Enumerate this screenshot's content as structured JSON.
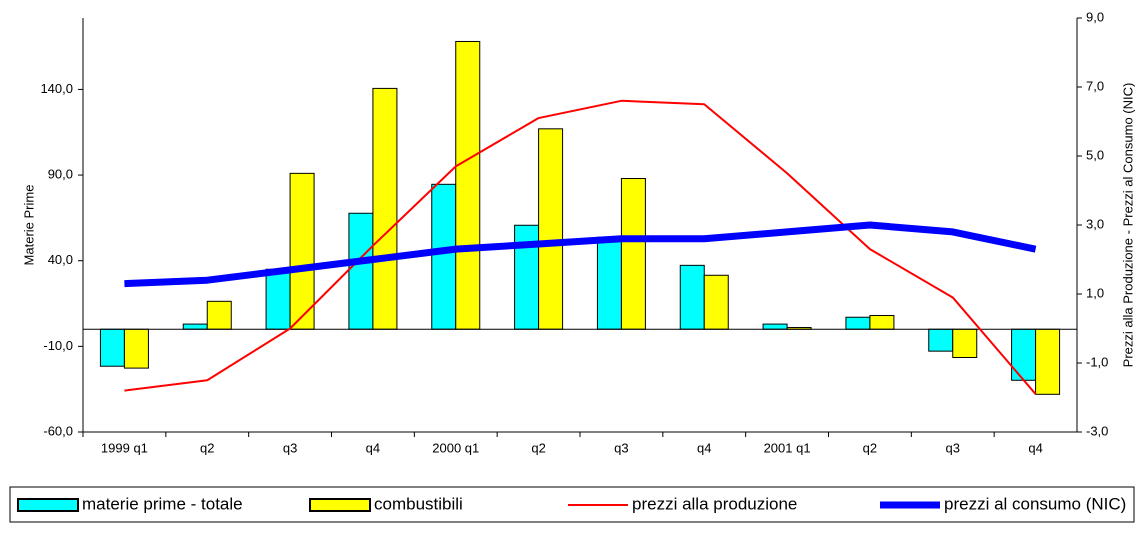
{
  "chart_data": {
    "type": "bar-line",
    "ylabel": "Materie Prime",
    "y2label": "Prezzi alla Produzione - Prezzi al Consumo (NIC)",
    "categories": [
      "1999 q1",
      "q2",
      "q3",
      "q4",
      "2000 q1",
      "q2",
      "q3",
      "q4",
      "2001 q1",
      "q2",
      "q3",
      "q4"
    ],
    "series": [
      {
        "name": "materie prime - totale",
        "type": "bar",
        "color": "#00ffff",
        "values": [
          -21.6,
          3,
          35,
          67.7,
          84.6,
          60.7,
          53.7,
          37.3,
          3,
          7,
          -12.8,
          -29.8
        ]
      },
      {
        "name": "combustibili",
        "type": "bar",
        "color": "#ffff00",
        "values": [
          -22.7,
          16.3,
          91,
          140.6,
          168,
          117,
          88,
          31.5,
          1,
          8,
          -16.5,
          -38
        ]
      },
      {
        "name": "prezzi alla produzione",
        "type": "line",
        "axis": "y2",
        "color": "#ff0000",
        "width": 2,
        "values": [
          -1.8,
          -1.5,
          0.0,
          2.4,
          4.7,
          6.1,
          6.6,
          6.5,
          4.5,
          2.3,
          0.9,
          -1.9
        ]
      },
      {
        "name": "prezzi al consumo (NIC)",
        "type": "line",
        "axis": "y2",
        "color": "#0000ff",
        "width": 7,
        "values": [
          1.3,
          1.4,
          1.7,
          2.0,
          2.3,
          2.45,
          2.6,
          2.6,
          2.8,
          3.0,
          2.8,
          2.3
        ]
      }
    ],
    "ylim": [
      -60,
      181.7
    ],
    "yticks": [
      {
        "value": -60,
        "label": "-60,0"
      },
      {
        "value": -10,
        "label": "-10,0"
      },
      {
        "value": 40,
        "label": "40,0"
      },
      {
        "value": 90,
        "label": "90,0"
      },
      {
        "value": 140,
        "label": "140,0"
      }
    ],
    "y2lim": [
      -3,
      9
    ],
    "y2ticks": [
      {
        "value": -3,
        "label": "-3,0"
      },
      {
        "value": -1,
        "label": "-1,0"
      },
      {
        "value": 1,
        "label": "1,0"
      },
      {
        "value": 3,
        "label": "3,0"
      },
      {
        "value": 5,
        "label": "5,0"
      },
      {
        "value": 7,
        "label": "7,0"
      },
      {
        "value": 9,
        "label": "9,0"
      }
    ]
  }
}
